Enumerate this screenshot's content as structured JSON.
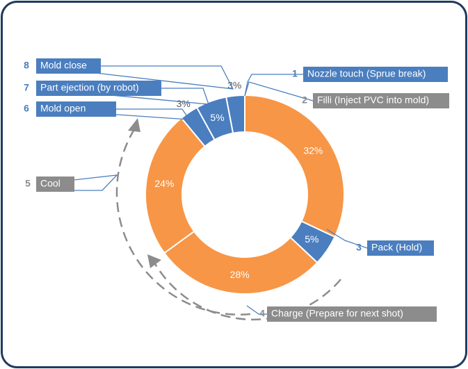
{
  "chart_data": {
    "type": "donut",
    "categories": [
      "Filli (Inject PVC into mold)",
      "Pack (Hold)",
      "Charge (Prepare for next shot)",
      "Cool",
      "Mold open",
      "Part ejection (by robot)",
      "Mold close"
    ],
    "numbers": [
      "2",
      "3",
      "4",
      "5",
      "6",
      "7",
      "8"
    ],
    "values": [
      32,
      5,
      28,
      24,
      3,
      5,
      3
    ],
    "value_labels": [
      "32%",
      "5%",
      "28%",
      "24%",
      "3%",
      "5%",
      "3%"
    ],
    "colors": [
      "#f79646",
      "#4a7ebf",
      "#f79646",
      "#f79646",
      "#4a7ebf",
      "#4a7ebf",
      "#4a7ebf"
    ],
    "label_colors": [
      "#8c8c8c",
      "#4a7ebf",
      "#8c8c8c",
      "#8c8c8c",
      "#4a7ebf",
      "#4a7ebf",
      "#4a7ebf"
    ],
    "annotation": {
      "number": "1",
      "text": "Nozzle touch (Sprue break)",
      "color": "#4a7ebf"
    }
  }
}
